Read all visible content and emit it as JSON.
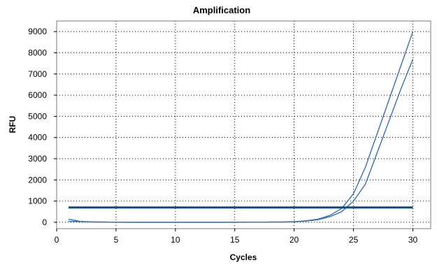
{
  "chart_data": {
    "type": "line",
    "title": "Amplification",
    "xlabel": "Cycles",
    "ylabel": "RFU",
    "xlim": [
      0,
      31.5
    ],
    "ylim": [
      -300,
      9500
    ],
    "xticks": [
      0,
      5,
      10,
      15,
      20,
      25,
      30
    ],
    "yticks": [
      0,
      1000,
      2000,
      3000,
      4000,
      5000,
      6000,
      7000,
      8000,
      9000
    ],
    "grid": true,
    "series": [
      {
        "color": "#3a6fa8",
        "x": [
          1,
          2,
          3,
          4,
          5,
          6,
          7,
          8,
          9,
          10,
          11,
          12,
          13,
          14,
          15,
          16,
          17,
          18,
          19,
          20,
          21,
          22,
          23,
          24,
          25,
          26,
          27,
          28,
          29,
          30
        ],
        "y": [
          150,
          40,
          20,
          10,
          5,
          0,
          0,
          0,
          0,
          0,
          0,
          0,
          0,
          0,
          5,
          5,
          5,
          10,
          15,
          30,
          70,
          150,
          320,
          650,
          1350,
          2600,
          4200,
          5800,
          7400,
          9000
        ]
      },
      {
        "color": "#3a6fa8",
        "x": [
          1,
          2,
          3,
          4,
          5,
          6,
          7,
          8,
          9,
          10,
          11,
          12,
          13,
          14,
          15,
          16,
          17,
          18,
          19,
          20,
          21,
          22,
          23,
          24,
          25,
          26,
          27,
          28,
          29,
          30
        ],
        "y": [
          50,
          30,
          15,
          10,
          5,
          0,
          0,
          0,
          0,
          0,
          0,
          0,
          0,
          0,
          0,
          5,
          5,
          10,
          10,
          25,
          55,
          120,
          260,
          500,
          1000,
          1800,
          3300,
          4800,
          6300,
          7700
        ]
      }
    ],
    "threshold": {
      "value": 700,
      "color": "#0d4a85"
    }
  }
}
